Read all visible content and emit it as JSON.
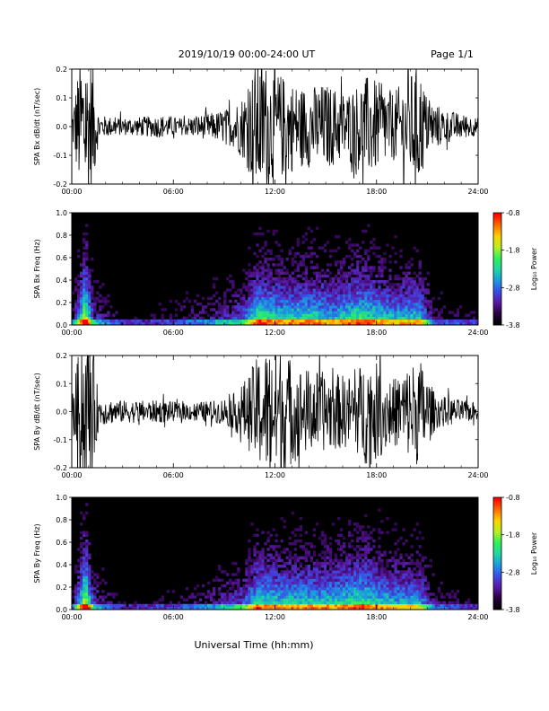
{
  "header": {
    "date_range": "2019/10/19  00:00-24:00 UT",
    "page": "Page 1/1"
  },
  "xlabel": "Universal Time (hh:mm)",
  "x_ticks": [
    "00:00",
    "06:00",
    "12:00",
    "18:00",
    "24:00"
  ],
  "colorbar": {
    "label": "Log₁₀ Power",
    "ticks": [
      "-0.8",
      "-1.8",
      "-2.8",
      "-3.8"
    ],
    "range": [
      -3.8,
      -0.8
    ],
    "colors": [
      "#000000",
      "#2a0040",
      "#5a1aa6",
      "#3a4de6",
      "#1a9be0",
      "#1fd8a0",
      "#2ff05a",
      "#b8f020",
      "#ffd000",
      "#ff6a00",
      "#ff0000"
    ]
  },
  "chart_data": [
    {
      "type": "line",
      "ylabel": "SPA Bx dB/dt (nT/sec)",
      "y_ticks": [
        "0.2",
        "0.1",
        "0.0",
        "-0.1",
        "-0.2"
      ],
      "ylim": [
        -0.2,
        0.2
      ],
      "xlim_hours": [
        0,
        24
      ],
      "amplitude_envelope": [
        {
          "t": 0.0,
          "a": 0.05
        },
        {
          "t": 0.5,
          "a": 0.25
        },
        {
          "t": 1.2,
          "a": 0.25
        },
        {
          "t": 1.6,
          "a": 0.04
        },
        {
          "t": 3.0,
          "a": 0.03
        },
        {
          "t": 5.5,
          "a": 0.04
        },
        {
          "t": 6.5,
          "a": 0.03
        },
        {
          "t": 8.5,
          "a": 0.05
        },
        {
          "t": 9.5,
          "a": 0.07
        },
        {
          "t": 10.2,
          "a": 0.12
        },
        {
          "t": 11.0,
          "a": 0.25
        },
        {
          "t": 12.0,
          "a": 0.2
        },
        {
          "t": 13.5,
          "a": 0.14
        },
        {
          "t": 15.0,
          "a": 0.15
        },
        {
          "t": 16.2,
          "a": 0.12
        },
        {
          "t": 17.5,
          "a": 0.18
        },
        {
          "t": 19.0,
          "a": 0.12
        },
        {
          "t": 20.5,
          "a": 0.22
        },
        {
          "t": 21.0,
          "a": 0.1
        },
        {
          "t": 22.0,
          "a": 0.06
        },
        {
          "t": 24.0,
          "a": 0.03
        }
      ]
    },
    {
      "type": "heatmap",
      "ylabel": "SPA Bx Freq (Hz)",
      "y_ticks": [
        "1.0",
        "0.8",
        "0.6",
        "0.4",
        "0.2",
        "0.0"
      ],
      "ylim": [
        0,
        1.0
      ],
      "xlim_hours": [
        0,
        24
      ],
      "activity_profile": [
        {
          "t": 0.0,
          "p": 0.1
        },
        {
          "t": 0.8,
          "p": 0.9
        },
        {
          "t": 1.3,
          "p": 0.3
        },
        {
          "t": 3.0,
          "p": 0.05
        },
        {
          "t": 6.0,
          "p": 0.1
        },
        {
          "t": 8.0,
          "p": 0.2
        },
        {
          "t": 10.0,
          "p": 0.35
        },
        {
          "t": 11.0,
          "p": 0.7
        },
        {
          "t": 12.5,
          "p": 0.6
        },
        {
          "t": 14.0,
          "p": 0.65
        },
        {
          "t": 15.5,
          "p": 0.55
        },
        {
          "t": 17.0,
          "p": 0.7
        },
        {
          "t": 19.0,
          "p": 0.55
        },
        {
          "t": 20.5,
          "p": 0.6
        },
        {
          "t": 21.5,
          "p": 0.15
        },
        {
          "t": 24.0,
          "p": 0.08
        }
      ]
    },
    {
      "type": "line",
      "ylabel": "SPA By dB/dt (nT/sec)",
      "y_ticks": [
        "0.2",
        "0.1",
        "0.0",
        "-0.1",
        "-0.2"
      ],
      "ylim": [
        -0.2,
        0.2
      ],
      "xlim_hours": [
        0,
        24
      ],
      "amplitude_envelope": [
        {
          "t": 0.0,
          "a": 0.05
        },
        {
          "t": 0.5,
          "a": 0.25
        },
        {
          "t": 1.2,
          "a": 0.25
        },
        {
          "t": 1.6,
          "a": 0.05
        },
        {
          "t": 3.0,
          "a": 0.04
        },
        {
          "t": 5.5,
          "a": 0.04
        },
        {
          "t": 6.5,
          "a": 0.03
        },
        {
          "t": 8.5,
          "a": 0.04
        },
        {
          "t": 9.5,
          "a": 0.06
        },
        {
          "t": 10.3,
          "a": 0.12
        },
        {
          "t": 11.0,
          "a": 0.2
        },
        {
          "t": 12.0,
          "a": 0.25
        },
        {
          "t": 13.5,
          "a": 0.16
        },
        {
          "t": 15.0,
          "a": 0.14
        },
        {
          "t": 16.5,
          "a": 0.13
        },
        {
          "t": 17.5,
          "a": 0.2
        },
        {
          "t": 19.0,
          "a": 0.12
        },
        {
          "t": 20.5,
          "a": 0.2
        },
        {
          "t": 21.5,
          "a": 0.06
        },
        {
          "t": 24.0,
          "a": 0.03
        }
      ]
    },
    {
      "type": "heatmap",
      "ylabel": "SPA By Freq (Hz)",
      "y_ticks": [
        "1.0",
        "0.8",
        "0.6",
        "0.4",
        "0.2",
        "0.0"
      ],
      "ylim": [
        0,
        1.0
      ],
      "xlim_hours": [
        0,
        24
      ],
      "activity_profile": [
        {
          "t": 0.0,
          "p": 0.1
        },
        {
          "t": 0.8,
          "p": 0.9
        },
        {
          "t": 1.3,
          "p": 0.3
        },
        {
          "t": 3.0,
          "p": 0.05
        },
        {
          "t": 6.0,
          "p": 0.1
        },
        {
          "t": 8.0,
          "p": 0.2
        },
        {
          "t": 10.0,
          "p": 0.35
        },
        {
          "t": 11.0,
          "p": 0.65
        },
        {
          "t": 12.5,
          "p": 0.6
        },
        {
          "t": 14.0,
          "p": 0.6
        },
        {
          "t": 15.5,
          "p": 0.6
        },
        {
          "t": 17.0,
          "p": 0.7
        },
        {
          "t": 19.0,
          "p": 0.55
        },
        {
          "t": 20.5,
          "p": 0.55
        },
        {
          "t": 21.5,
          "p": 0.15
        },
        {
          "t": 24.0,
          "p": 0.08
        }
      ]
    }
  ]
}
